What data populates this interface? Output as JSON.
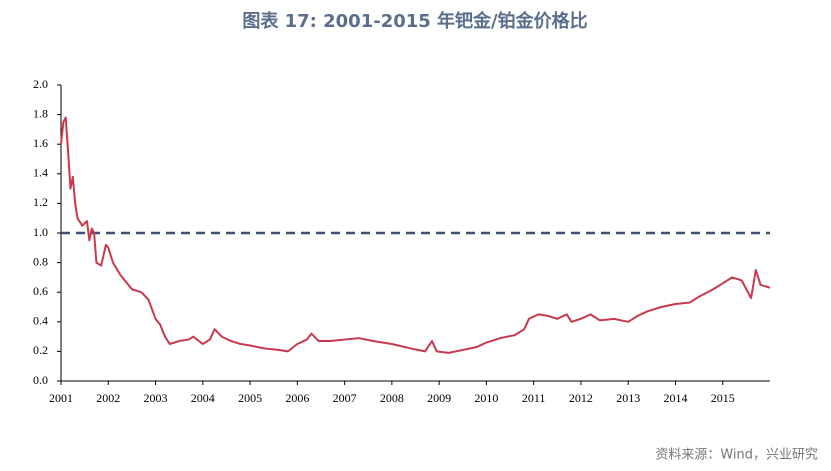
{
  "chart_data": {
    "type": "line",
    "title": "图表 17: 2001-2015 年钯金/铂金价格比",
    "source": "资料来源：Wind，兴业研究",
    "x": [
      2001.0,
      2001.05,
      2001.1,
      2001.15,
      2001.2,
      2001.25,
      2001.3,
      2001.35,
      2001.45,
      2001.55,
      2001.6,
      2001.65,
      2001.7,
      2001.75,
      2001.85,
      2001.9,
      2001.95,
      2002.0,
      2002.1,
      2002.25,
      2002.4,
      2002.5,
      2002.7,
      2002.85,
      2003.0,
      2003.1,
      2003.2,
      2003.3,
      2003.5,
      2003.7,
      2003.8,
      2004.0,
      2004.15,
      2004.25,
      2004.4,
      2004.6,
      2004.8,
      2005.0,
      2005.3,
      2005.6,
      2005.8,
      2006.0,
      2006.2,
      2006.3,
      2006.45,
      2006.7,
      2007.0,
      2007.3,
      2007.6,
      2008.0,
      2008.4,
      2008.7,
      2008.85,
      2008.95,
      2009.2,
      2009.5,
      2009.8,
      2010.0,
      2010.3,
      2010.6,
      2010.8,
      2010.9,
      2011.1,
      2011.3,
      2011.5,
      2011.7,
      2011.8,
      2012.0,
      2012.2,
      2012.4,
      2012.7,
      2013.0,
      2013.2,
      2013.4,
      2013.7,
      2014.0,
      2014.3,
      2014.5,
      2014.8,
      2015.0,
      2015.2,
      2015.4,
      2015.5,
      2015.6,
      2015.7,
      2015.8,
      2016.0
    ],
    "series": [
      {
        "color": "#c8394d",
        "values": [
          1.6,
          1.75,
          1.78,
          1.55,
          1.3,
          1.38,
          1.2,
          1.1,
          1.05,
          1.08,
          0.95,
          1.03,
          1.0,
          0.8,
          0.78,
          0.85,
          0.92,
          0.9,
          0.8,
          0.72,
          0.66,
          0.62,
          0.6,
          0.55,
          0.42,
          0.38,
          0.3,
          0.25,
          0.27,
          0.28,
          0.3,
          0.25,
          0.28,
          0.35,
          0.3,
          0.27,
          0.25,
          0.24,
          0.22,
          0.21,
          0.2,
          0.25,
          0.28,
          0.32,
          0.27,
          0.27,
          0.28,
          0.29,
          0.27,
          0.25,
          0.22,
          0.2,
          0.27,
          0.2,
          0.19,
          0.21,
          0.23,
          0.26,
          0.29,
          0.31,
          0.35,
          0.42,
          0.45,
          0.44,
          0.42,
          0.45,
          0.4,
          0.42,
          0.45,
          0.41,
          0.42,
          0.4,
          0.44,
          0.47,
          0.5,
          0.52,
          0.53,
          0.57,
          0.62,
          0.66,
          0.7,
          0.68,
          0.62,
          0.56,
          0.75,
          0.65,
          0.63
        ]
      }
    ],
    "xlim": [
      2001,
      2016
    ],
    "xticks": [
      2001,
      2002,
      2003,
      2004,
      2005,
      2006,
      2007,
      2008,
      2009,
      2010,
      2011,
      2012,
      2013,
      2014,
      2015
    ],
    "ylim": [
      0,
      2
    ],
    "yticks": [
      {
        "value": 0,
        "label": "0.0"
      },
      {
        "value": 0.2,
        "label": "0.2"
      },
      {
        "value": 0.4,
        "label": "0.4"
      },
      {
        "value": 0.6,
        "label": "0.6"
      },
      {
        "value": 0.8,
        "label": "0.8"
      },
      {
        "value": 1,
        "label": "1.0"
      },
      {
        "value": 1.2,
        "label": "1.2"
      },
      {
        "value": 1.4,
        "label": "1.4"
      },
      {
        "value": 1.6,
        "label": "1.6"
      },
      {
        "value": 1.8,
        "label": "1.8"
      },
      {
        "value": 2,
        "label": "2.0"
      }
    ],
    "reference_line": {
      "value": 1,
      "color": "#3d5272"
    },
    "grid": false
  }
}
